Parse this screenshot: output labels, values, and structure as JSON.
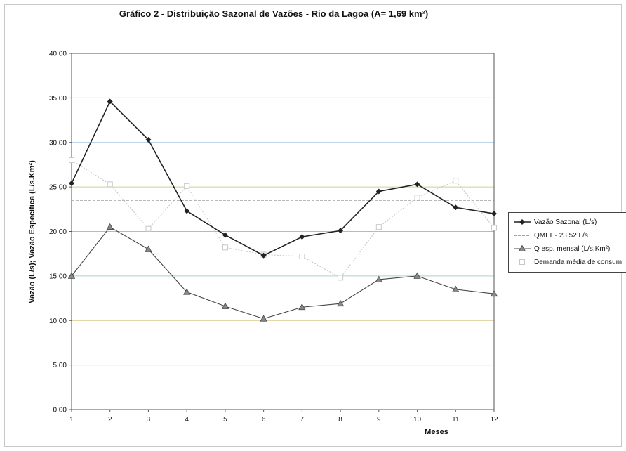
{
  "chart_data": {
    "type": "line",
    "title": "Gráfico 2 - Distribuição Sazonal de Vazões - Rio da Lagoa (A= 1,69 km²)",
    "xlabel": "Meses",
    "ylabel": "Vazão (L/s); Vazão Específica (L/s.Km²)",
    "x": [
      1,
      2,
      3,
      4,
      5,
      6,
      7,
      8,
      9,
      10,
      11,
      12
    ],
    "ylim": [
      0,
      40
    ],
    "yticks": [
      "0,00",
      "5,00",
      "10,00",
      "15,00",
      "20,00",
      "25,00",
      "30,00",
      "35,00",
      "40,00"
    ],
    "grid": true,
    "legend_position": "right",
    "series": [
      {
        "name": "Vazão Sazonal (L/s)",
        "color": "#222222",
        "marker": "diamond",
        "values": [
          25.4,
          34.6,
          30.3,
          22.3,
          19.6,
          17.3,
          19.4,
          20.1,
          24.5,
          25.3,
          22.7,
          22.0
        ]
      },
      {
        "name": "QMLT - 23,52 L/s",
        "color": "#444444",
        "marker": "none",
        "dashed": true,
        "values": [
          23.52,
          23.52,
          23.52,
          23.52,
          23.52,
          23.52,
          23.52,
          23.52,
          23.52,
          23.52,
          23.52,
          23.52
        ]
      },
      {
        "name": "Q esp. mensal (L/s.Km²)",
        "color": "#444444",
        "marker": "triangle",
        "values": [
          15.0,
          20.5,
          18.0,
          13.2,
          11.6,
          10.2,
          11.5,
          11.9,
          14.6,
          15.0,
          13.5,
          13.0
        ]
      },
      {
        "name": "Demanda média de consum",
        "color": "#c8c8c8",
        "marker": "square",
        "dashed": true,
        "values": [
          28.0,
          25.3,
          20.3,
          25.1,
          18.2,
          17.4,
          17.2,
          14.8,
          20.5,
          23.8,
          25.7,
          20.4
        ]
      }
    ]
  }
}
